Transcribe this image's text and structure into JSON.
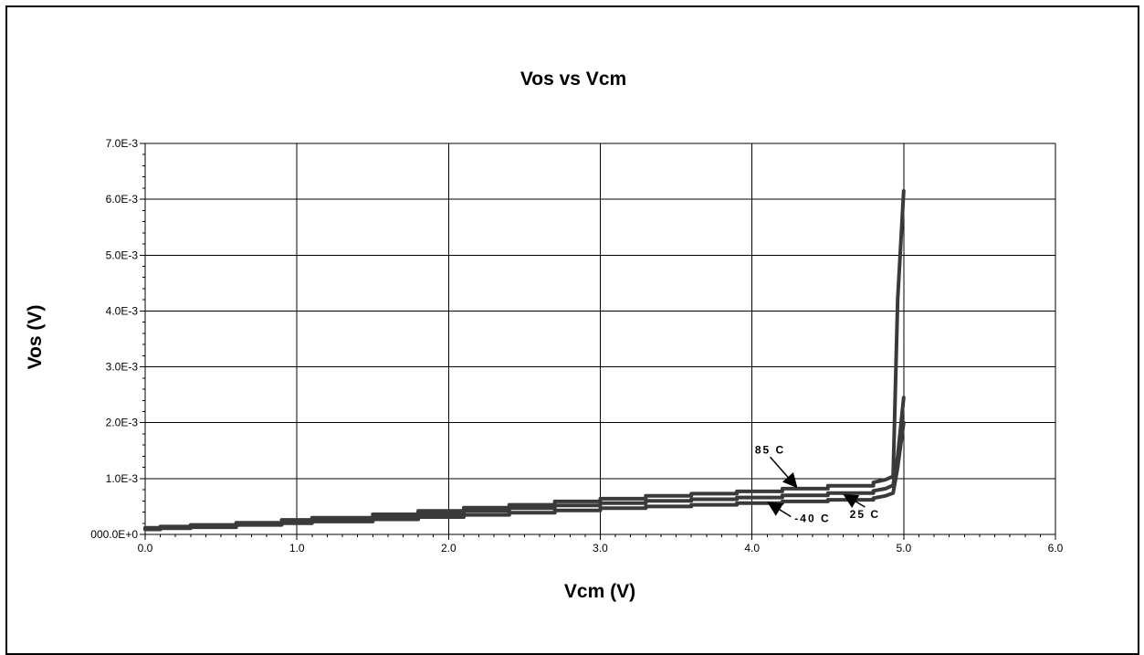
{
  "chart_data": {
    "type": "line",
    "title": "Vos vs Vcm",
    "xlabel": "Vcm (V)",
    "ylabel": "Vos (V)",
    "xlim": [
      0.0,
      6.0
    ],
    "ylim": [
      0.0,
      0.007
    ],
    "x_ticks": [
      "0.0",
      "1.0",
      "2.0",
      "3.0",
      "4.0",
      "5.0",
      "6.0"
    ],
    "y_ticks": [
      "000.0E+0",
      "1.0E-3",
      "2.0E-3",
      "3.0E-3",
      "4.0E-3",
      "5.0E-3",
      "6.0E-3",
      "7.0E-3"
    ],
    "grid": true,
    "line_color": "#3a3a3a",
    "series": [
      {
        "name": "85 C",
        "x": [
          0.0,
          0.1,
          0.3,
          0.6,
          0.9,
          1.1,
          1.5,
          1.8,
          2.1,
          2.4,
          2.7,
          3.0,
          3.3,
          3.6,
          3.9,
          4.2,
          4.5,
          4.8,
          4.88,
          4.93,
          4.96,
          5.0
        ],
        "y": [
          0.00012,
          0.00014,
          0.00017,
          0.00021,
          0.00026,
          0.0003,
          0.00036,
          0.00042,
          0.00048,
          0.00053,
          0.00059,
          0.00064,
          0.00069,
          0.00073,
          0.00077,
          0.00082,
          0.00087,
          0.00093,
          0.00098,
          0.00104,
          0.0042,
          0.00615
        ]
      },
      {
        "name": "25 C",
        "x": [
          0.0,
          0.1,
          0.3,
          0.6,
          0.9,
          1.1,
          1.5,
          1.8,
          2.1,
          2.4,
          2.7,
          3.0,
          3.3,
          3.6,
          3.9,
          4.2,
          4.5,
          4.8,
          4.88,
          4.93,
          4.96,
          5.0
        ],
        "y": [
          0.0001,
          0.00012,
          0.00015,
          0.00019,
          0.00023,
          0.00027,
          0.00032,
          0.00037,
          0.00042,
          0.00047,
          0.00052,
          0.00056,
          0.0006,
          0.00063,
          0.00066,
          0.0007,
          0.00074,
          0.00078,
          0.00082,
          0.00088,
          0.0014,
          0.00245
        ]
      },
      {
        "name": "-40 C",
        "x": [
          0.0,
          0.1,
          0.3,
          0.6,
          0.9,
          1.1,
          1.5,
          1.8,
          2.1,
          2.4,
          2.7,
          3.0,
          3.3,
          3.6,
          3.9,
          4.2,
          4.5,
          4.8,
          4.88,
          4.93,
          4.96,
          5.0
        ],
        "y": [
          9e-05,
          0.00011,
          0.00013,
          0.00017,
          0.0002,
          0.00023,
          0.00027,
          0.00031,
          0.00035,
          0.00039,
          0.00043,
          0.00047,
          0.0005,
          0.00053,
          0.00056,
          0.00059,
          0.00062,
          0.00065,
          0.00069,
          0.00074,
          0.0012,
          0.002
        ]
      }
    ],
    "annotations": [
      {
        "text": "85 C",
        "series": "85 C",
        "at_x": 4.3,
        "at_y": 0.00083
      },
      {
        "text": "25 C",
        "series": "25 C",
        "at_x": 4.6,
        "at_y": 0.00072
      },
      {
        "text": "-40 C",
        "series": "-40 C",
        "at_x": 4.1,
        "at_y": 0.00058
      }
    ]
  }
}
